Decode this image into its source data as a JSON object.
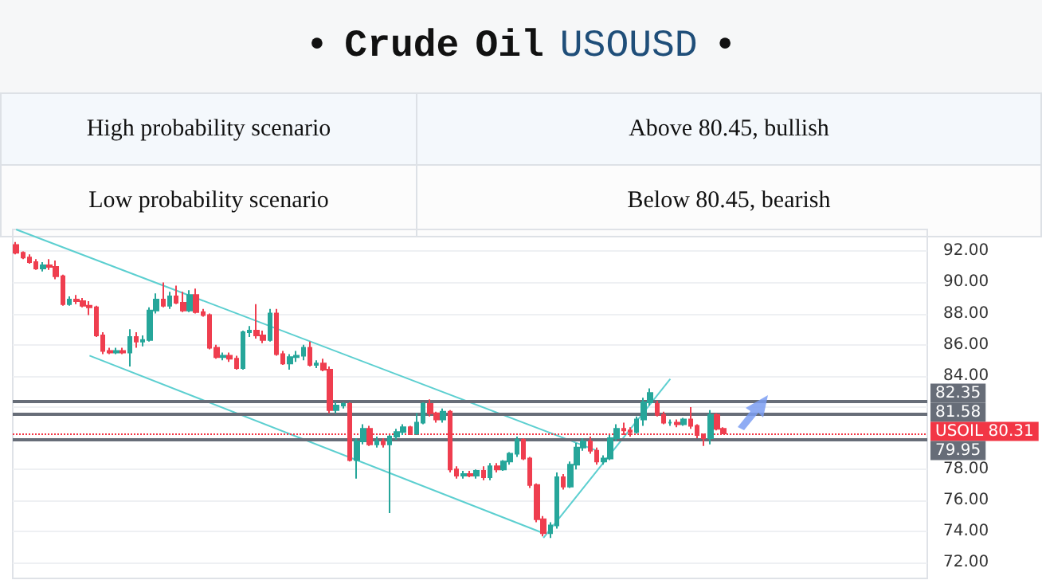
{
  "chart_data": {
    "type": "candlestick",
    "title": "• Crude Oil USOUSD •",
    "annotations": [
      "High probability scenario",
      "Above 80.45, bullish",
      "Low probability scenario",
      "Below 80.45, bearish"
    ],
    "categories": [
      null,
      null,
      null,
      null,
      null,
      null,
      null,
      null,
      null,
      null,
      null,
      null,
      null,
      null,
      null,
      null,
      null,
      null,
      null,
      null,
      null,
      null,
      null,
      null,
      null,
      null,
      null,
      null,
      null,
      null,
      null,
      null,
      null,
      null,
      null,
      null,
      null,
      null,
      null,
      null,
      null,
      null,
      null,
      null,
      null,
      null,
      null,
      null,
      null,
      null,
      null,
      null,
      null,
      null,
      null,
      null,
      null,
      null,
      null,
      null,
      null,
      null,
      null,
      null,
      null,
      null,
      null,
      null,
      null,
      null,
      null,
      null,
      null,
      null,
      null,
      null,
      null,
      null,
      null,
      null,
      null,
      null,
      null,
      null,
      null,
      null,
      null,
      null,
      null,
      null,
      null,
      null,
      null,
      null,
      null,
      null,
      null,
      null,
      null,
      null,
      null,
      null,
      null,
      null,
      null,
      null,
      null,
      null,
      null,
      null,
      null,
      null,
      null,
      null,
      null,
      null,
      null,
      null,
      null,
      null,
      null,
      null,
      null,
      null,
      null,
      null,
      null,
      null,
      null,
      null,
      null,
      null,
      null,
      null,
      null,
      null,
      null
    ],
    "ohlc": [
      [
        92.4,
        92.6,
        91.8,
        91.9
      ],
      [
        91.9,
        92.0,
        91.5,
        91.6
      ],
      [
        91.6,
        91.8,
        91.2,
        91.3
      ],
      [
        91.3,
        91.5,
        90.8,
        90.9
      ],
      [
        90.9,
        91.3,
        90.7,
        91.1
      ],
      [
        91.1,
        91.5,
        90.8,
        91.0
      ],
      [
        91.0,
        91.4,
        90.2,
        90.4
      ],
      [
        90.4,
        90.5,
        88.5,
        88.6
      ],
      [
        88.6,
        89.1,
        88.5,
        88.9
      ],
      [
        88.9,
        89.2,
        88.6,
        88.8
      ],
      [
        88.8,
        89.0,
        88.4,
        88.5
      ],
      [
        88.5,
        88.8,
        87.9,
        88.4
      ],
      [
        88.4,
        88.5,
        86.5,
        86.6
      ],
      [
        86.6,
        86.8,
        85.4,
        85.6
      ],
      [
        85.6,
        85.8,
        85.4,
        85.5
      ],
      [
        85.5,
        85.8,
        85.4,
        85.6
      ],
      [
        85.6,
        85.8,
        85.4,
        85.5
      ],
      [
        85.5,
        87.0,
        84.6,
        86.5
      ],
      [
        86.5,
        86.8,
        85.8,
        86.2
      ],
      [
        86.2,
        86.6,
        85.9,
        86.3
      ],
      [
        86.3,
        88.4,
        86.2,
        88.2
      ],
      [
        88.2,
        89.3,
        88.0,
        88.9
      ],
      [
        88.9,
        90.0,
        88.4,
        88.5
      ],
      [
        88.5,
        89.4,
        88.3,
        89.1
      ],
      [
        89.1,
        89.8,
        88.6,
        88.7
      ],
      [
        88.7,
        89.4,
        88.1,
        88.2
      ],
      [
        88.2,
        89.5,
        88.1,
        89.2
      ],
      [
        89.2,
        89.6,
        88.0,
        88.1
      ],
      [
        88.1,
        88.3,
        87.8,
        87.9
      ],
      [
        87.9,
        88.0,
        85.7,
        85.8
      ],
      [
        85.8,
        86.0,
        85.1,
        85.2
      ],
      [
        85.2,
        85.5,
        85.0,
        85.3
      ],
      [
        85.3,
        85.5,
        84.9,
        85.1
      ],
      [
        85.1,
        85.3,
        84.4,
        84.5
      ],
      [
        84.5,
        86.9,
        84.4,
        86.8
      ],
      [
        86.8,
        87.2,
        86.5,
        86.9
      ],
      [
        86.9,
        88.6,
        86.4,
        86.6
      ],
      [
        86.6,
        86.9,
        86.1,
        86.3
      ],
      [
        86.3,
        88.3,
        86.2,
        88.0
      ],
      [
        88.0,
        88.3,
        85.3,
        85.4
      ],
      [
        85.4,
        85.6,
        84.7,
        84.8
      ],
      [
        84.8,
        85.4,
        84.4,
        85.2
      ],
      [
        85.2,
        85.6,
        84.9,
        85.3
      ],
      [
        85.3,
        86.0,
        85.0,
        85.8
      ],
      [
        85.8,
        86.2,
        84.6,
        84.7
      ],
      [
        84.7,
        85.0,
        84.5,
        84.8
      ],
      [
        84.8,
        85.1,
        84.3,
        84.4
      ],
      [
        84.4,
        84.6,
        81.6,
        81.8
      ],
      [
        81.8,
        82.3,
        81.6,
        82.1
      ],
      [
        82.1,
        82.3,
        81.9,
        82.2
      ],
      [
        82.2,
        82.3,
        78.5,
        78.6
      ],
      [
        78.6,
        80.0,
        77.4,
        79.8
      ],
      [
        79.8,
        80.9,
        79.6,
        80.6
      ],
      [
        80.6,
        80.8,
        79.5,
        79.6
      ],
      [
        79.6,
        80.1,
        79.4,
        79.8
      ],
      [
        79.8,
        80.0,
        79.4,
        79.6
      ],
      [
        79.6,
        80.2,
        75.2,
        80.1
      ],
      [
        80.1,
        80.6,
        79.9,
        80.4
      ],
      [
        80.4,
        80.9,
        80.2,
        80.7
      ],
      [
        80.7,
        80.8,
        80.2,
        80.3
      ],
      [
        80.3,
        81.6,
        80.2,
        81.0
      ],
      [
        81.0,
        82.3,
        80.9,
        82.2
      ],
      [
        82.2,
        82.5,
        81.4,
        81.6
      ],
      [
        81.6,
        81.7,
        81.0,
        81.2
      ],
      [
        81.2,
        81.9,
        81.0,
        81.7
      ],
      [
        81.7,
        81.8,
        77.8,
        78.0
      ],
      [
        78.0,
        78.2,
        77.4,
        77.6
      ],
      [
        77.6,
        77.9,
        77.4,
        77.7
      ],
      [
        77.7,
        77.9,
        77.5,
        77.6
      ],
      [
        77.6,
        78.0,
        77.4,
        77.9
      ],
      [
        77.9,
        78.2,
        77.3,
        77.5
      ],
      [
        77.5,
        78.4,
        77.3,
        78.2
      ],
      [
        78.2,
        78.4,
        77.8,
        78.0
      ],
      [
        78.0,
        78.6,
        77.9,
        78.5
      ],
      [
        78.5,
        79.1,
        78.3,
        79.0
      ],
      [
        79.0,
        80.1,
        78.8,
        79.9
      ],
      [
        79.9,
        80.0,
        78.6,
        78.7
      ],
      [
        78.7,
        78.8,
        76.8,
        77.0
      ],
      [
        77.0,
        77.1,
        74.6,
        74.8
      ],
      [
        74.8,
        75.0,
        73.7,
        73.9
      ],
      [
        73.9,
        74.6,
        73.6,
        74.4
      ],
      [
        74.4,
        77.8,
        74.2,
        77.5
      ],
      [
        77.5,
        77.7,
        76.7,
        76.9
      ],
      [
        76.9,
        78.5,
        76.8,
        78.3
      ],
      [
        78.3,
        79.7,
        78.0,
        79.4
      ],
      [
        79.4,
        80.0,
        79.2,
        79.8
      ],
      [
        79.8,
        80.1,
        79.0,
        79.2
      ],
      [
        79.2,
        79.4,
        78.3,
        78.5
      ],
      [
        78.5,
        78.9,
        78.3,
        78.7
      ],
      [
        78.7,
        80.2,
        78.6,
        80.0
      ],
      [
        80.0,
        80.9,
        79.8,
        80.6
      ],
      [
        80.6,
        81.0,
        80.2,
        80.5
      ],
      [
        80.5,
        80.7,
        80.1,
        80.4
      ],
      [
        80.4,
        81.4,
        80.3,
        81.2
      ],
      [
        81.2,
        82.6,
        80.8,
        82.3
      ],
      [
        82.3,
        83.2,
        82.1,
        82.9
      ],
      [
        82.2,
        82.4,
        81.4,
        81.5
      ],
      [
        81.5,
        81.7,
        80.9,
        81.0
      ],
      [
        81.0,
        81.2,
        80.8,
        81.0
      ],
      [
        81.0,
        81.2,
        80.7,
        80.9
      ],
      [
        80.9,
        81.3,
        80.8,
        81.2
      ],
      [
        81.2,
        82.0,
        80.6,
        80.8
      ],
      [
        80.8,
        80.9,
        80.0,
        80.2
      ],
      [
        80.2,
        80.3,
        79.5,
        80.0
      ],
      [
        80.0,
        81.8,
        79.6,
        81.5
      ],
      [
        81.5,
        81.6,
        80.5,
        80.6
      ],
      [
        80.6,
        80.7,
        80.3,
        80.31
      ],
      null,
      null,
      null,
      null,
      null,
      null,
      null,
      null,
      null,
      null,
      null,
      null,
      null,
      null,
      null,
      null,
      null,
      null,
      null,
      null,
      null,
      null,
      null,
      null,
      null,
      null,
      null,
      null,
      null,
      null
    ],
    "series": [
      {
        "type": "line",
        "color": "#5ccfd0",
        "values": [
          93.4,
          null,
          null,
          null,
          null,
          null,
          null,
          null,
          null,
          null,
          null,
          null,
          null,
          null,
          null,
          null,
          null,
          null,
          null,
          null,
          null,
          null,
          null,
          null,
          null,
          null,
          null,
          null,
          null,
          null,
          null,
          null,
          null,
          null,
          null,
          null,
          null,
          null,
          null,
          null,
          null,
          null,
          null,
          null,
          null,
          null,
          null,
          null,
          null,
          null,
          null,
          null,
          null,
          null,
          null,
          null,
          null,
          null,
          null,
          null,
          null,
          null,
          null,
          null,
          null,
          null,
          null,
          null,
          null,
          null,
          null,
          null,
          null,
          null,
          null,
          null,
          null,
          null,
          null,
          null,
          null,
          null,
          null,
          null,
          null,
          null,
          null,
          79.2,
          null,
          null,
          null,
          null,
          null,
          null,
          null,
          null,
          null,
          null,
          null,
          null,
          null,
          null,
          null,
          null,
          null,
          null,
          null,
          null,
          null,
          null,
          null,
          null,
          null,
          null,
          null,
          null,
          null,
          null,
          null,
          null,
          null,
          null,
          null,
          null,
          null,
          null,
          null,
          null,
          null,
          null,
          null,
          null,
          null,
          null,
          null,
          null,
          null
        ]
      },
      {
        "type": "line",
        "color": "#5ccfd0",
        "values": [
          null,
          null,
          null,
          null,
          null,
          null,
          null,
          null,
          null,
          null,
          null,
          85.3,
          null,
          null,
          null,
          null,
          null,
          null,
          null,
          null,
          null,
          null,
          null,
          null,
          null,
          null,
          null,
          null,
          null,
          null,
          null,
          null,
          null,
          null,
          null,
          null,
          null,
          null,
          null,
          null,
          null,
          null,
          null,
          null,
          null,
          null,
          null,
          null,
          null,
          null,
          null,
          null,
          null,
          null,
          null,
          null,
          null,
          null,
          null,
          null,
          null,
          null,
          null,
          null,
          null,
          null,
          null,
          null,
          null,
          null,
          null,
          null,
          null,
          null,
          null,
          null,
          null,
          null,
          null,
          73.9,
          null,
          null,
          null,
          null,
          null,
          null,
          null,
          null,
          null,
          null,
          null,
          null,
          null,
          null,
          null,
          null,
          null,
          null,
          null,
          null,
          null,
          null,
          null,
          null,
          null,
          null,
          null,
          null,
          null,
          null,
          null,
          null,
          null,
          null,
          null,
          null,
          null,
          null,
          null,
          null,
          null,
          null,
          null,
          null,
          null,
          null,
          null,
          null,
          null,
          null,
          null,
          null,
          null,
          null,
          null,
          null,
          null
        ]
      },
      {
        "type": "line",
        "color": "#5ccfd0",
        "values": [
          null,
          null,
          null,
          null,
          null,
          null,
          null,
          null,
          null,
          null,
          null,
          null,
          null,
          null,
          null,
          null,
          null,
          null,
          null,
          null,
          null,
          null,
          null,
          null,
          null,
          null,
          null,
          null,
          null,
          null,
          null,
          null,
          null,
          null,
          null,
          null,
          null,
          null,
          null,
          null,
          null,
          null,
          null,
          null,
          null,
          null,
          null,
          null,
          null,
          null,
          null,
          null,
          null,
          null,
          null,
          null,
          null,
          null,
          null,
          null,
          null,
          null,
          null,
          null,
          null,
          null,
          null,
          null,
          null,
          null,
          null,
          null,
          null,
          null,
          null,
          null,
          null,
          null,
          null,
          73.6,
          null,
          null,
          null,
          null,
          null,
          null,
          null,
          null,
          null,
          null,
          null,
          null,
          null,
          null,
          null,
          null,
          null,
          null,
          83.8,
          null,
          null,
          null,
          null,
          null,
          null,
          null,
          null,
          null,
          null,
          null,
          null,
          null,
          null,
          null,
          null,
          null,
          null,
          null,
          null,
          null,
          null,
          null,
          null,
          null,
          null,
          null,
          null,
          null,
          null,
          null,
          null,
          null,
          null,
          null,
          null,
          null,
          null
        ]
      }
    ],
    "ylim": [
      71,
      93.4
    ],
    "yticks": [
      {
        "value": 72,
        "label": "72.00"
      },
      {
        "value": 74,
        "label": "74.00"
      },
      {
        "value": 76,
        "label": "76.00"
      },
      {
        "value": 78,
        "label": "78.00"
      },
      {
        "value": 80,
        "label": null
      },
      {
        "value": 82,
        "label": null
      },
      {
        "value": 84,
        "label": "84.00"
      },
      {
        "value": 86,
        "label": "86.00"
      },
      {
        "value": 88,
        "label": "88.00"
      },
      {
        "value": 90,
        "label": "90.00"
      },
      {
        "value": 92,
        "label": "92.00"
      }
    ],
    "ref_lines": [
      {
        "axis": "y",
        "value": 82.35,
        "label": "82.35",
        "color": "#676d78"
      },
      {
        "axis": "y",
        "value": 81.58,
        "label": "81.58",
        "color": "#676d78"
      },
      {
        "axis": "y",
        "value": 79.95,
        "label": "79.95",
        "color": "#676d78"
      },
      {
        "axis": "y",
        "value": 80.31,
        "label": "USOIL 80.31",
        "color": "#f23645",
        "line_style": "dotted"
      }
    ],
    "grid": "y",
    "tick_labels": "y",
    "marker": "none"
  }
}
